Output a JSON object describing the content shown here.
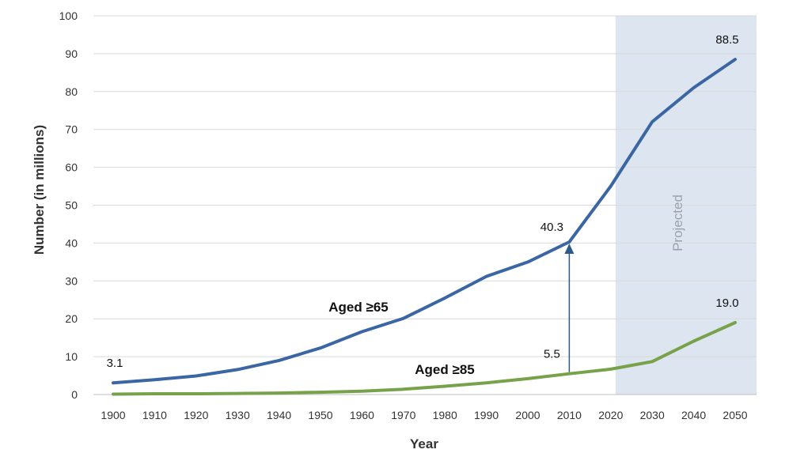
{
  "chart_data": {
    "type": "line",
    "x": [
      1900,
      1910,
      1920,
      1930,
      1940,
      1950,
      1960,
      1970,
      1980,
      1990,
      2000,
      2010,
      2020,
      2030,
      2040,
      2050
    ],
    "series": [
      {
        "name": "Aged ≥65",
        "color": "#3a66a3",
        "values": [
          3.1,
          3.9,
          4.9,
          6.6,
          9.0,
          12.3,
          16.6,
          20.1,
          25.5,
          31.2,
          35.0,
          40.3,
          55.0,
          72.0,
          81.0,
          88.5
        ]
      },
      {
        "name": "Aged ≥85",
        "color": "#77a24a",
        "values": [
          0.1,
          0.2,
          0.2,
          0.3,
          0.4,
          0.6,
          0.9,
          1.4,
          2.2,
          3.1,
          4.2,
          5.5,
          6.7,
          8.7,
          14.1,
          19.0
        ]
      }
    ],
    "xlabel": "Year",
    "ylabel": "Number (in millions)",
    "ylim": [
      0,
      100
    ],
    "yticks": [
      0,
      10,
      20,
      30,
      40,
      50,
      60,
      70,
      80,
      90,
      100
    ],
    "grid": true,
    "projected_band": {
      "label": "Projected",
      "x_range": [
        2020,
        2050
      ],
      "color": "#dce5f0"
    },
    "data_labels": [
      {
        "series": 0,
        "x": 1900,
        "text": "3.1"
      },
      {
        "series": 0,
        "x": 2010,
        "text": "40.3"
      },
      {
        "series": 0,
        "x": 2050,
        "text": "88.5"
      },
      {
        "series": 1,
        "x": 2010,
        "text": "5.5"
      },
      {
        "series": 1,
        "x": 2050,
        "text": "19.0"
      }
    ],
    "series_labels": [
      "Aged ≥65",
      "Aged ≥85"
    ],
    "arrow": {
      "x": 2010,
      "from": 5.5,
      "to": 40.3,
      "color": "#2d5a8c"
    }
  }
}
